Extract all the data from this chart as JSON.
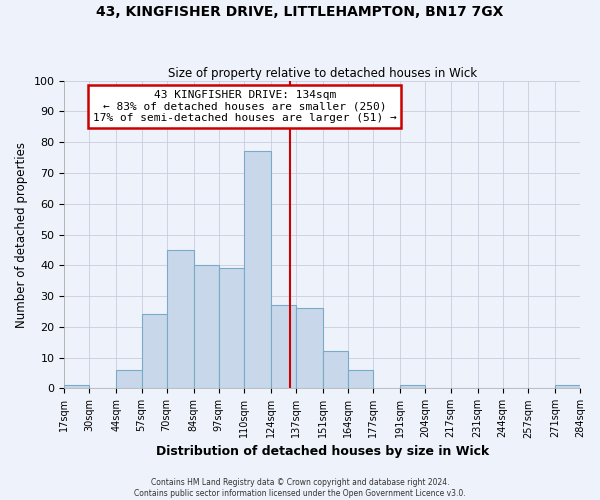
{
  "title": "43, KINGFISHER DRIVE, LITTLEHAMPTON, BN17 7GX",
  "subtitle": "Size of property relative to detached houses in Wick",
  "xlabel": "Distribution of detached houses by size in Wick",
  "ylabel": "Number of detached properties",
  "bar_color": "#c8d8ea",
  "bar_edge_color": "#7aaac8",
  "background_color": "#eef2fa",
  "plot_bg_color": "#eef2fa",
  "grid_color": "#ccccdd",
  "bin_edges": [
    17,
    30,
    44,
    57,
    70,
    84,
    97,
    110,
    124,
    137,
    151,
    164,
    177,
    191,
    204,
    217,
    231,
    244,
    257,
    271,
    284
  ],
  "bin_labels": [
    "17sqm",
    "30sqm",
    "44sqm",
    "57sqm",
    "70sqm",
    "84sqm",
    "97sqm",
    "110sqm",
    "124sqm",
    "137sqm",
    "151sqm",
    "164sqm",
    "177sqm",
    "191sqm",
    "204sqm",
    "217sqm",
    "231sqm",
    "244sqm",
    "257sqm",
    "271sqm",
    "284sqm"
  ],
  "counts": [
    1,
    0,
    6,
    24,
    45,
    40,
    39,
    77,
    27,
    26,
    12,
    6,
    0,
    1,
    0,
    0,
    0,
    0,
    0,
    1
  ],
  "vline_x": 134,
  "vline_color": "#cc0000",
  "annotation_title": "43 KINGFISHER DRIVE: 134sqm",
  "annotation_line1": "← 83% of detached houses are smaller (250)",
  "annotation_line2": "17% of semi-detached houses are larger (51) →",
  "annotation_box_facecolor": "#ffffff",
  "annotation_box_edgecolor": "#cc0000",
  "ylim": [
    0,
    100
  ],
  "yticks": [
    0,
    10,
    20,
    30,
    40,
    50,
    60,
    70,
    80,
    90,
    100
  ],
  "footer1": "Contains HM Land Registry data © Crown copyright and database right 2024.",
  "footer2": "Contains public sector information licensed under the Open Government Licence v3.0."
}
